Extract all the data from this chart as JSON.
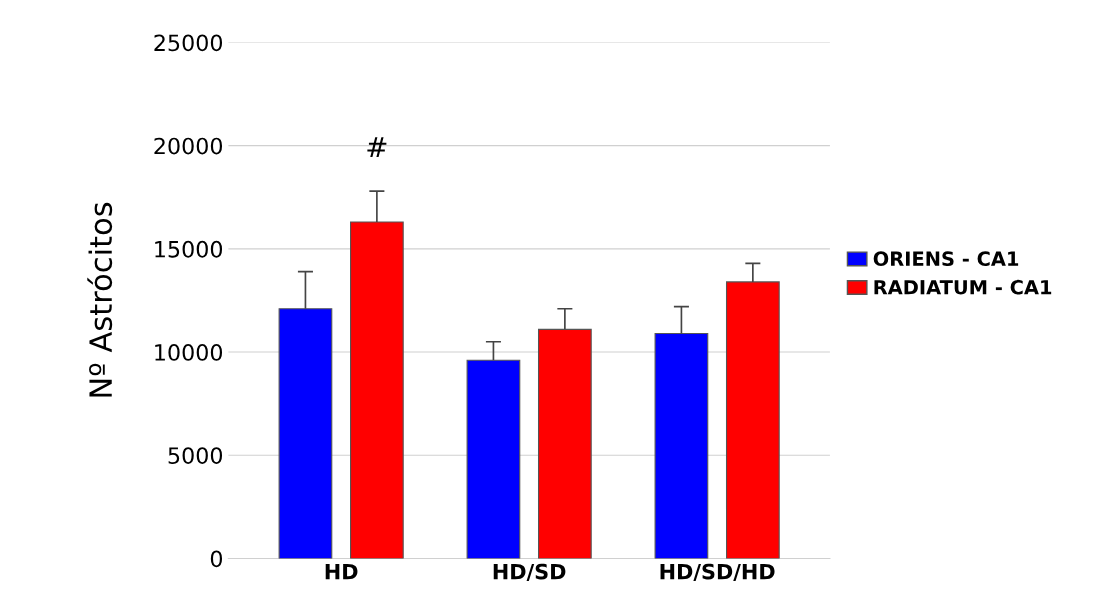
{
  "chart_data": {
    "type": "bar",
    "ylabel": "Nº Astrócitos",
    "categories": [
      "HD",
      "HD/SD",
      "HD/SD/HD"
    ],
    "series": [
      {
        "name": "ORIENS - CA1",
        "color": "#0000ff",
        "values": [
          12100,
          9600,
          10900
        ],
        "errors": [
          [
            12100,
            13900
          ],
          [
            9600,
            10500
          ],
          [
            10900,
            12200
          ]
        ]
      },
      {
        "name": "RADIATUM - CA1",
        "color": "#ff0000",
        "values": [
          16300,
          11100,
          13400
        ],
        "errors": [
          [
            16300,
            17800
          ],
          [
            11100,
            12100
          ],
          [
            13400,
            14300
          ]
        ]
      }
    ],
    "annotations": [
      "#"
    ],
    "ylim": [
      0,
      25000
    ],
    "yticks": [
      0,
      5000,
      10000,
      15000,
      20000,
      25000
    ],
    "grid": "y",
    "legend": "right"
  }
}
